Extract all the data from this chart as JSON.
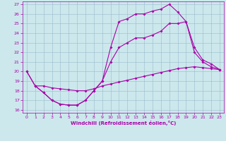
{
  "xlabel": "Windchill (Refroidissement éolien,°C)",
  "xlim": [
    -0.5,
    23.5
  ],
  "ylim": [
    15.7,
    27.3
  ],
  "yticks": [
    16,
    17,
    18,
    19,
    20,
    21,
    22,
    23,
    24,
    25,
    26,
    27
  ],
  "xticks": [
    0,
    1,
    2,
    3,
    4,
    5,
    6,
    7,
    8,
    9,
    10,
    11,
    12,
    13,
    14,
    15,
    16,
    17,
    18,
    19,
    20,
    21,
    22,
    23
  ],
  "bg_color": "#cce8ec",
  "line_color": "#aa00aa",
  "grid_color": "#99bbcc",
  "line1_x": [
    0,
    1,
    2,
    3,
    4,
    5,
    6,
    7,
    8,
    9,
    10,
    11,
    12,
    13,
    14,
    15,
    16,
    17,
    18,
    19,
    20,
    21,
    22,
    23
  ],
  "line1_y": [
    20.0,
    18.5,
    17.8,
    17.0,
    16.6,
    16.5,
    16.5,
    17.0,
    18.0,
    19.0,
    22.5,
    25.2,
    25.5,
    26.0,
    26.0,
    26.3,
    26.5,
    27.0,
    26.2,
    25.2,
    22.0,
    21.0,
    20.5,
    20.2
  ],
  "line2_x": [
    0,
    1,
    2,
    3,
    4,
    5,
    6,
    7,
    8,
    9,
    10,
    11,
    12,
    13,
    14,
    15,
    16,
    17,
    18,
    19,
    20,
    21,
    22,
    23
  ],
  "line2_y": [
    20.0,
    18.5,
    17.8,
    17.0,
    16.6,
    16.5,
    16.5,
    17.0,
    18.0,
    19.0,
    21.0,
    22.5,
    23.0,
    23.5,
    23.5,
    23.8,
    24.2,
    25.0,
    25.0,
    25.2,
    22.5,
    21.2,
    20.8,
    20.2
  ],
  "line3_x": [
    1,
    2,
    3,
    4,
    5,
    6,
    7,
    8,
    9,
    10,
    11,
    12,
    13,
    14,
    15,
    16,
    17,
    18,
    19,
    20,
    21,
    22,
    23
  ],
  "line3_y": [
    18.5,
    18.5,
    18.3,
    18.2,
    18.1,
    18.0,
    18.0,
    18.2,
    18.5,
    18.7,
    18.9,
    19.1,
    19.3,
    19.5,
    19.7,
    19.9,
    20.1,
    20.3,
    20.4,
    20.5,
    20.4,
    20.3,
    20.2
  ]
}
